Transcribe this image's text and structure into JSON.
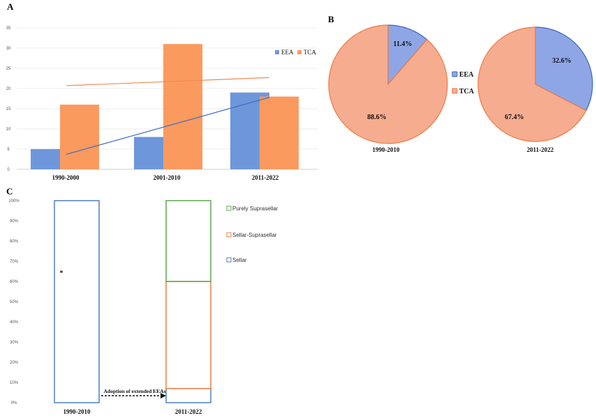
{
  "colors": {
    "eea": "#6e97db",
    "tca": "#fb9a5e",
    "eea_line": "#3c6bc1",
    "tca_line": "#f08a55",
    "pie_eea": "#8fa6e6",
    "pie_tca": "#f6ac8f",
    "pie_eea_edge": "#3a63bb",
    "pie_tca_edge": "#ee7a45",
    "stack_blue": "#4f7fc2",
    "stack_orange": "#ef7f43",
    "stack_green": "#5aa84a"
  },
  "chart_data": [
    {
      "panel": "A",
      "type": "bar",
      "categories": [
        "1990-2000",
        "2001-2010",
        "2011-2022"
      ],
      "series": [
        {
          "name": "EEA",
          "values": [
            5,
            8,
            19
          ]
        },
        {
          "name": "TCA",
          "values": [
            16,
            31,
            18
          ]
        }
      ],
      "trendlines": [
        {
          "series": "EEA",
          "start": 3.7,
          "end": 17.8
        },
        {
          "series": "TCA",
          "start": 20.7,
          "end": 22.7
        }
      ],
      "ylim": [
        0,
        35
      ],
      "yticks": [
        "0",
        "5",
        "10",
        "15",
        "20",
        "25",
        "30",
        "35"
      ],
      "legend": [
        "EEA",
        "TCA"
      ]
    },
    {
      "panel": "B",
      "type": "pie",
      "pies": [
        {
          "title": "1990-2010",
          "slices": [
            {
              "name": "EEA",
              "value": 11.4,
              "label": "11.4%"
            },
            {
              "name": "TCA",
              "value": 88.6,
              "label": "88.6%"
            }
          ]
        },
        {
          "title": "2011-2022",
          "slices": [
            {
              "name": "EEA",
              "value": 32.6,
              "label": "32.6%"
            },
            {
              "name": "TCA",
              "value": 67.4,
              "label": "67.4%"
            }
          ]
        }
      ],
      "legend": [
        "EEA",
        "TCA"
      ]
    },
    {
      "panel": "C",
      "type": "bar",
      "stacked": true,
      "categories": [
        "1990-2010",
        "2011-2022"
      ],
      "series": [
        {
          "name": "Sellar",
          "values": [
            100,
            7
          ]
        },
        {
          "name": "Sellar-Suprasellar",
          "values": [
            0,
            53
          ]
        },
        {
          "name": "Purely Suprasellar",
          "values": [
            0,
            40
          ]
        }
      ],
      "ylim": [
        0,
        100
      ],
      "yticks": [
        "0%",
        "10%",
        "20%",
        "30%",
        "40%",
        "50%",
        "60%",
        "70%",
        "80%",
        "90%",
        "100%"
      ],
      "legend": [
        "Purely Suprasellar",
        "Sellar-Suprasellar",
        "Sellar"
      ],
      "annotation": "*",
      "arrow_label": "Adoption of extended EEAs"
    }
  ],
  "labels": {
    "panel_a": "A",
    "panel_b": "B",
    "panel_c": "C"
  }
}
